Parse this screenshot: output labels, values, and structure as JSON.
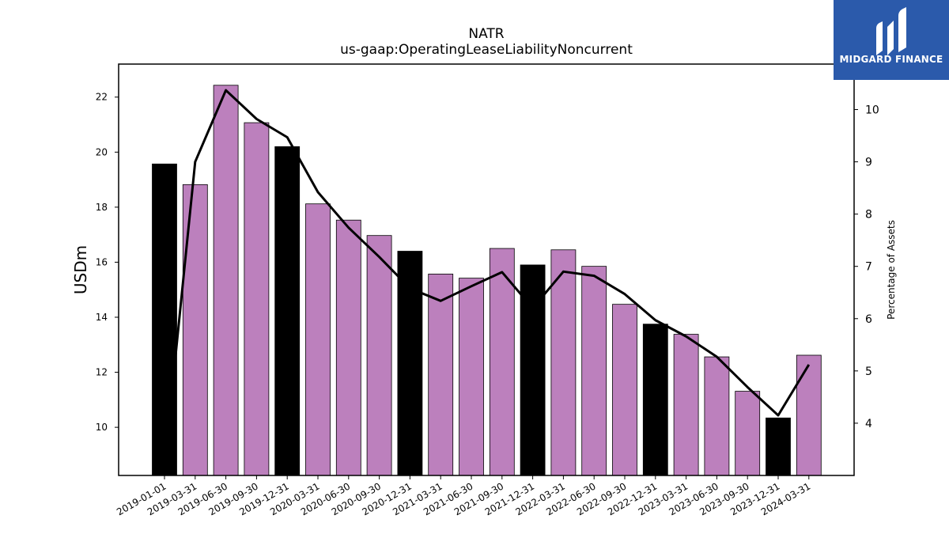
{
  "logo": {
    "text": "MIDGARD FINANCE",
    "color": "#2b5aab"
  },
  "colors": {
    "bar_default": "#bc80bd",
    "bar_highlight": "#000000",
    "line": "#000000"
  },
  "chart_data": {
    "type": "bar",
    "title": "NATR",
    "subtitle": "us-gaap:OperatingLeaseLiabilityNoncurrent",
    "ylabel": "USDm",
    "y2label": "Percentage of Assets",
    "ylim": [
      8.25,
      23.2
    ],
    "y2lim": [
      3.0,
      10.87
    ],
    "yticks": [
      10,
      12,
      14,
      16,
      18,
      20,
      22
    ],
    "y2ticks": [
      4,
      5,
      6,
      7,
      8,
      9,
      10
    ],
    "categories": [
      "2019-01-01",
      "2019-03-31",
      "2019-06-30",
      "2019-09-30",
      "2019-12-31",
      "2020-03-31",
      "2020-06-30",
      "2020-09-30",
      "2020-12-31",
      "2021-03-31",
      "2021-06-30",
      "2021-09-30",
      "2021-12-31",
      "2022-03-31",
      "2022-06-30",
      "2022-09-30",
      "2022-12-31",
      "2023-03-31",
      "2023-06-30",
      "2023-09-30",
      "2023-12-31",
      "2024-03-31"
    ],
    "series": [
      {
        "type": "bar",
        "axis": "left",
        "values": [
          19.57,
          18.82,
          22.43,
          21.07,
          20.2,
          18.12,
          17.53,
          16.97,
          16.4,
          15.57,
          15.42,
          16.5,
          15.9,
          16.45,
          15.85,
          14.47,
          13.75,
          13.38,
          12.56,
          11.31,
          10.34,
          12.62
        ],
        "highlight": [
          true,
          false,
          false,
          false,
          true,
          false,
          false,
          false,
          true,
          false,
          false,
          false,
          true,
          false,
          false,
          false,
          true,
          false,
          false,
          false,
          true,
          false
        ]
      },
      {
        "type": "line",
        "axis": "right",
        "values": [
          3.2,
          9.0,
          10.37,
          9.82,
          9.47,
          8.42,
          7.74,
          7.18,
          6.58,
          6.34,
          6.62,
          6.89,
          6.2,
          6.9,
          6.82,
          6.47,
          5.97,
          5.66,
          5.27,
          4.69,
          4.15,
          5.12
        ]
      }
    ]
  }
}
